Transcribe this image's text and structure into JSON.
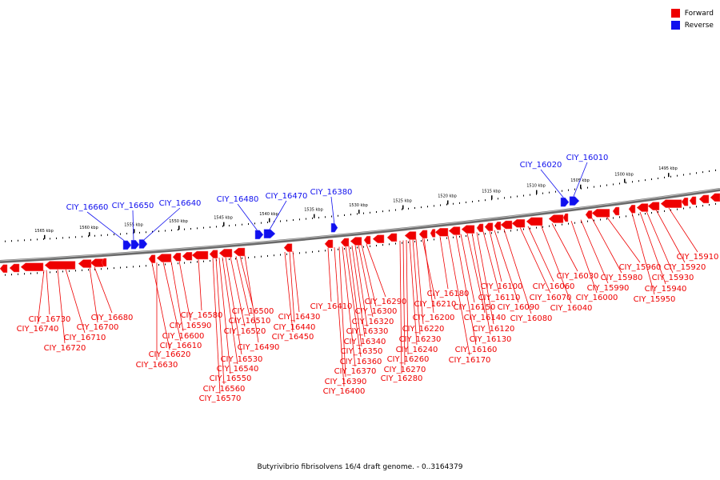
{
  "legend": [
    {
      "label": "Forward",
      "color": "#ee0000"
    },
    {
      "label": "Reverse",
      "color": "#1010ee"
    }
  ],
  "caption": "Butyrivibrio fibrisolvens 16/4 draft genome. - 0..3164379",
  "colors": {
    "forward": "#ee0000",
    "reverse": "#1010ee",
    "backbone": "#888888"
  },
  "ticks_kbp": [
    "1565 kbp",
    "1560 kbp",
    "1555 kbp",
    "1550 kbp",
    "1545 kbp",
    "1540 kbp",
    "1535 kbp",
    "1530 kbp",
    "1525 kbp",
    "1520 kbp",
    "1515 kbp",
    "1510 kbp",
    "1505 kbp",
    "1500 kbp",
    "1495 kbp"
  ],
  "reverse_genes": [
    "CIY_16660",
    "CIY_16650",
    "CIY_16640",
    "CIY_16480",
    "CIY_16470",
    "CIY_16380",
    "CIY_16020",
    "CIY_16010"
  ],
  "forward_genes": [
    "CIY_16730",
    "CIY_16740",
    "CIY_16710",
    "CIY_16720",
    "CIY_16700",
    "CIY_16680",
    "CIY_16620",
    "CIY_16630",
    "CIY_16610",
    "CIY_16600",
    "CIY_16590",
    "CIY_16580",
    "CIY_16570",
    "CIY_16560",
    "CIY_16550",
    "CIY_16540",
    "CIY_16530",
    "CIY_16520",
    "CIY_16510",
    "CIY_16500",
    "CIY_16490",
    "CIY_16450",
    "CIY_16440",
    "CIY_16430",
    "CIY_16410",
    "CIY_16400",
    "CIY_16390",
    "CIY_16370",
    "CIY_16360",
    "CIY_16350",
    "CIY_16340",
    "CIY_16330",
    "CIY_16320",
    "CIY_16300",
    "CIY_16290",
    "CIY_16280",
    "CIY_16270",
    "CIY_16260",
    "CIY_16240",
    "CIY_16230",
    "CIY_16220",
    "CIY_16210",
    "CIY_16200",
    "CIY_16180",
    "CIY_16170",
    "CIY_16160",
    "CIY_16150",
    "CIY_16140",
    "CIY_16130",
    "CIY_16120",
    "CIY_16110",
    "CIY_16100",
    "CIY_16090",
    "CIY_16080",
    "CIY_16070",
    "CIY_16060",
    "CIY_16040",
    "CIY_16030",
    "CIY_16000",
    "CIY_15990",
    "CIY_15980",
    "CIY_15960",
    "CIY_15950",
    "CIY_15940",
    "CIY_15930",
    "CIY_15920",
    "CIY_15910"
  ]
}
